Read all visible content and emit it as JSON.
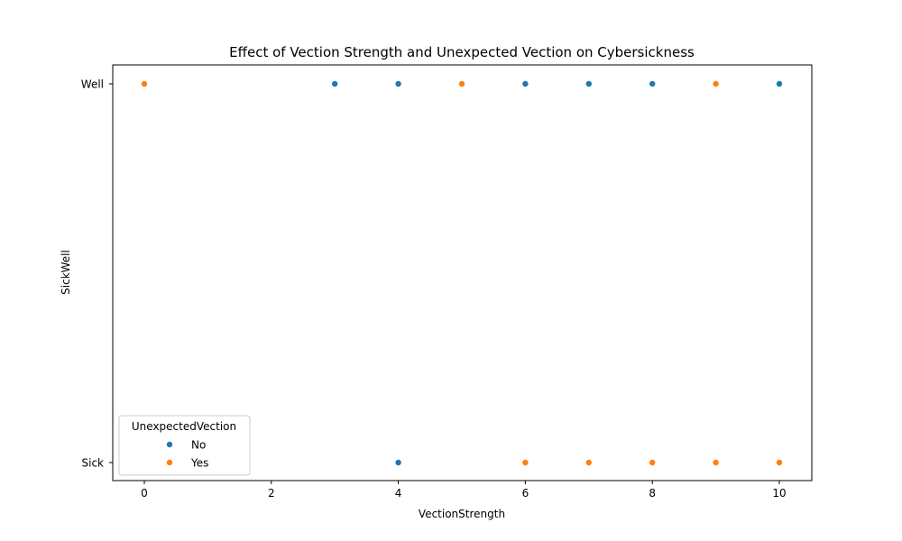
{
  "chart_data": {
    "type": "scatter",
    "title": "Effect of Vection Strength and Unexpected Vection on Cybersickness",
    "xlabel": "VectionStrength",
    "ylabel": "SickWell",
    "xlim": [
      -0.45,
      10.5
    ],
    "x_ticks": [
      0,
      2,
      4,
      6,
      8,
      10
    ],
    "y_categories": [
      "Sick",
      "Well"
    ],
    "grid": false,
    "legend": {
      "title": "UnexpectedVection",
      "position": "lower-left"
    },
    "series": [
      {
        "name": "No",
        "color": "#1f77b4",
        "points": [
          {
            "x": 3,
            "y": "Well"
          },
          {
            "x": 4,
            "y": "Well"
          },
          {
            "x": 6,
            "y": "Well"
          },
          {
            "x": 7,
            "y": "Well"
          },
          {
            "x": 8,
            "y": "Well"
          },
          {
            "x": 10,
            "y": "Well"
          },
          {
            "x": 4,
            "y": "Sick"
          }
        ]
      },
      {
        "name": "Yes",
        "color": "#ff7f0e",
        "points": [
          {
            "x": 0,
            "y": "Well"
          },
          {
            "x": 5,
            "y": "Well"
          },
          {
            "x": 9,
            "y": "Well"
          },
          {
            "x": 6,
            "y": "Sick"
          },
          {
            "x": 7,
            "y": "Sick"
          },
          {
            "x": 8,
            "y": "Sick"
          },
          {
            "x": 9,
            "y": "Sick"
          },
          {
            "x": 10,
            "y": "Sick"
          }
        ]
      }
    ]
  }
}
